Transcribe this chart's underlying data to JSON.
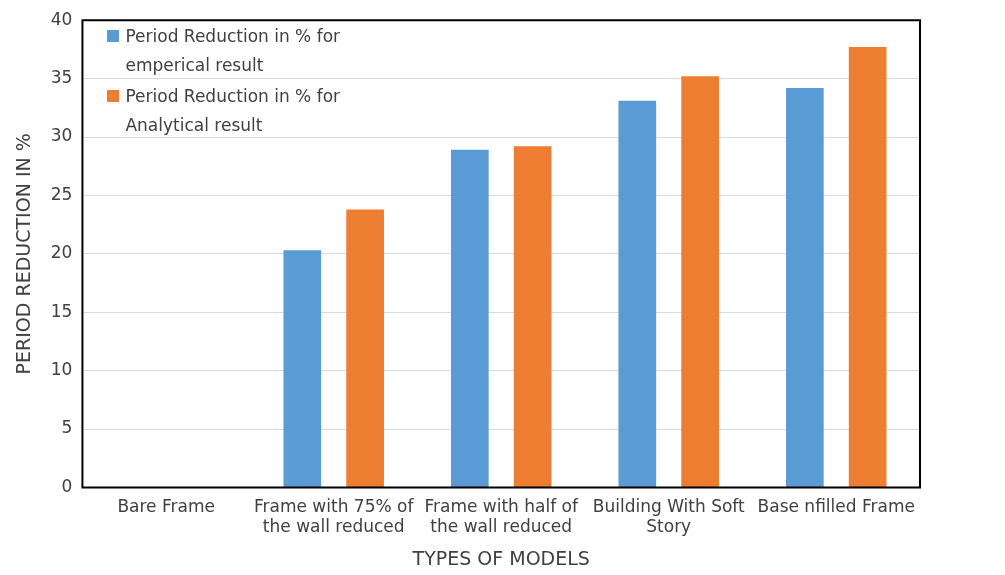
{
  "chart_data": {
    "type": "bar",
    "xlabel": "TYPES OF MODELS",
    "ylabel": "PERIOD REDUCTION IN %",
    "categories": [
      "Bare Frame",
      "Frame with 75% of the wall reduced",
      "Frame with half of the wall reduced",
      "Building With Soft Story",
      "Base nfilled Frame"
    ],
    "series": [
      {
        "name": "Period Reduction in % for emperical result",
        "color": "#5b9bd5",
        "values": [
          0,
          20.3,
          28.9,
          33.1,
          34.2
        ]
      },
      {
        "name": "Period Reduction in % for Analytical result",
        "color": "#ed7d31",
        "values": [
          0,
          23.8,
          29.2,
          35.2,
          37.7
        ]
      }
    ],
    "ylim": [
      0,
      40
    ],
    "yticks": [
      0,
      5,
      10,
      15,
      20,
      25,
      30,
      35,
      40
    ],
    "grid": "y",
    "legend": "top left"
  }
}
